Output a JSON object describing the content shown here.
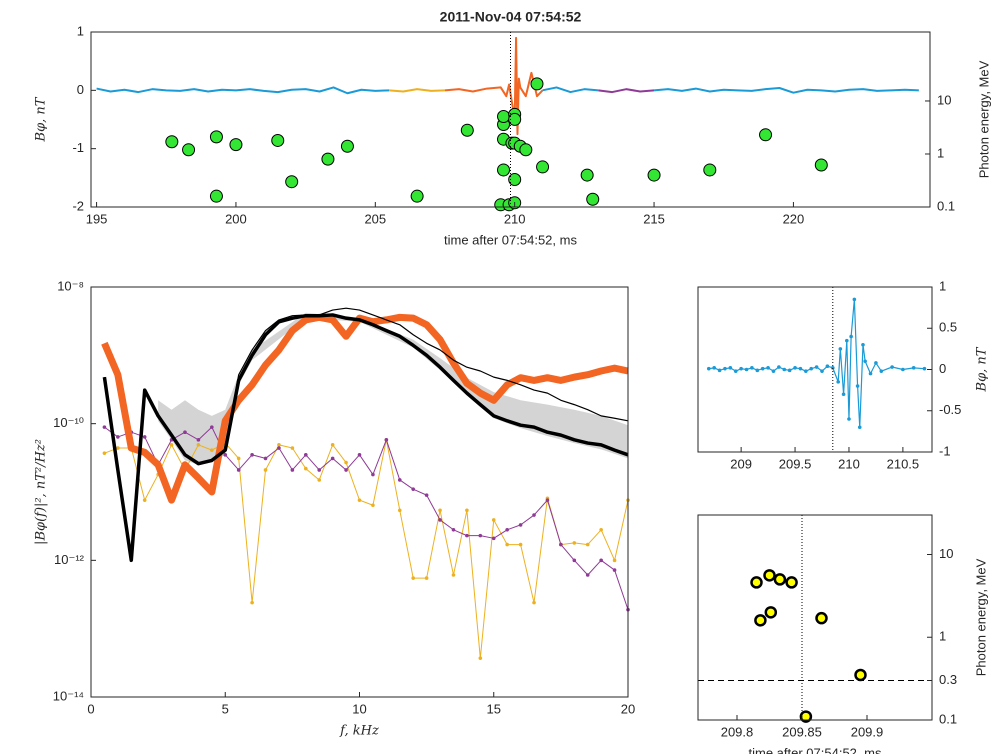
{
  "chart_data": [
    {
      "type": "line",
      "title": "2011-Nov-04 07:54:52",
      "xlabel": "time after 07:54:52, ms",
      "ylabel": "Bφ, nT",
      "y2label": "Photon energy, MeV",
      "xlim": [
        194.8,
        224.9
      ],
      "xticks": [
        195,
        200,
        205,
        210,
        215,
        220
      ],
      "ylim": [
        -2,
        1
      ],
      "yticks": [
        -2,
        -1,
        0,
        1
      ],
      "y2lim": [
        0.1,
        200
      ],
      "y2ticks": [
        0.1,
        1,
        10
      ],
      "y2log": true,
      "vline": 209.85,
      "series": [
        {
          "color": "#1a9ad6",
          "style": "line",
          "width": 2,
          "x": [
            195,
            195.5,
            196,
            196.5,
            197,
            197.5,
            198,
            198.5,
            199,
            199.5,
            200,
            200.5,
            201,
            201.5,
            202,
            202.5,
            203,
            203.5,
            204,
            204.5,
            205,
            205.5
          ],
          "values": [
            0.03,
            -0.02,
            0.01,
            -0.03,
            0.02,
            0,
            -0.01,
            0.02,
            -0.02,
            0.01,
            0,
            0.02,
            -0.01,
            -0.03,
            0.01,
            0.02,
            -0.02,
            0.05,
            -0.05,
            0.01,
            -0.01,
            0
          ]
        },
        {
          "color": "#edb120",
          "style": "line",
          "width": 2,
          "x": [
            205.5,
            206,
            206.5,
            207,
            207.5
          ],
          "values": [
            0,
            -0.02,
            0.02,
            -0.01,
            0
          ]
        },
        {
          "color": "#f26522",
          "style": "line",
          "width": 2,
          "x": [
            207.5,
            208,
            208.5,
            209,
            209.5,
            209.7,
            209.8,
            209.9,
            210,
            210.05,
            210.1,
            210.15,
            210.2,
            210.4,
            210.6,
            210.8,
            211
          ],
          "values": [
            0,
            0.02,
            -0.02,
            0.03,
            0.05,
            -0.1,
            0.1,
            -0.2,
            -0.5,
            0.9,
            -0.75,
            0.2,
            0.05,
            -0.1,
            0.3,
            -0.1,
            0
          ]
        },
        {
          "color": "#1a9ad6",
          "style": "line",
          "width": 2,
          "x": [
            211,
            211.5,
            212,
            212.5,
            213
          ],
          "values": [
            0,
            0.05,
            -0.03,
            0.02,
            0
          ]
        },
        {
          "color": "#8e3a96",
          "style": "line",
          "width": 2,
          "x": [
            213,
            213.5,
            214,
            214.5,
            215
          ],
          "values": [
            0,
            -0.03,
            0.02,
            -0.02,
            0
          ]
        },
        {
          "color": "#1a9ad6",
          "style": "line",
          "width": 2,
          "x": [
            215,
            215.5,
            216,
            216.5,
            217,
            217.5,
            218,
            218.5,
            219,
            219.5,
            220,
            220.5,
            221,
            221.5,
            222,
            222.5,
            223,
            223.5,
            224,
            224.5
          ],
          "values": [
            0,
            0.02,
            -0.01,
            0.03,
            -0.02,
            0.01,
            0,
            -0.01,
            0.02,
            0.04,
            -0.04,
            0.01,
            0,
            -0.02,
            0.01,
            0.02,
            -0.01,
            0,
            0.01,
            0
          ]
        },
        {
          "color": "#33e633",
          "style": "markers",
          "axis": "y2",
          "x": [
            197.7,
            198.3,
            199.3,
            199.3,
            200,
            201.5,
            202,
            203.3,
            204,
            206.5,
            208.3,
            209.6,
            209.6,
            209.6,
            209.9,
            210,
            210,
            210,
            210.2,
            210.4,
            209.6,
            209.5,
            209.8,
            210,
            210,
            210.8,
            211,
            212.6,
            212.8,
            215,
            217,
            219,
            221
          ],
          "values": [
            1.7,
            1.2,
            2.1,
            0.16,
            1.5,
            1.8,
            0.3,
            0.8,
            1.4,
            0.16,
            2.8,
            3.6,
            5.1,
            1.9,
            1.6,
            5.6,
            4.5,
            1.6,
            1.4,
            1.2,
            0.5,
            0.11,
            0.11,
            0.12,
            0.33,
            21,
            0.57,
            0.4,
            0.14,
            0.4,
            0.5,
            2.3,
            0.62
          ]
        }
      ]
    },
    {
      "type": "line",
      "xlabel": "f, kHz",
      "ylabel": "|Bφ(f)|², nT²/Hz²",
      "xlim": [
        0,
        20
      ],
      "xticks": [
        0,
        5,
        10,
        15,
        20
      ],
      "ylim": [
        1e-14,
        1e-08
      ],
      "ylog": true,
      "yticks": [
        {
          "value": 1e-08,
          "label": "10⁻⁸"
        },
        {
          "value": 1e-10,
          "label": "10⁻¹⁰"
        },
        {
          "value": 1e-12,
          "label": "10⁻¹²"
        },
        {
          "value": 1e-14,
          "label": "10⁻¹⁴"
        }
      ],
      "x": [
        0.5,
        1,
        1.5,
        2,
        2.5,
        3,
        3.5,
        4,
        4.5,
        5,
        5.5,
        6,
        6.5,
        7,
        7.5,
        8,
        8.5,
        9,
        9.5,
        10,
        10.5,
        11,
        11.5,
        12,
        12.5,
        13,
        13.5,
        14,
        14.5,
        15,
        15.5,
        16,
        16.5,
        17,
        17.5,
        18,
        18.5,
        19,
        19.5,
        20
      ],
      "band": {
        "color": "#d4d4d4",
        "x": [
          2.5,
          3,
          3.5,
          4,
          4.5,
          5,
          5.5,
          6,
          8,
          10,
          12,
          13,
          14,
          15,
          16,
          17,
          18,
          19,
          20
        ],
        "upper": [
          2.2e-10,
          1.6e-10,
          2.2e-10,
          1.6e-10,
          1.3e-10,
          1.6e-10,
          5.2e-10,
          1.2e-09,
          4.2e-09,
          3.5e-09,
          1.7e-09,
          9.1e-10,
          4.7e-10,
          2.9e-10,
          2.2e-10,
          1.9e-10,
          1.6e-10,
          1.3e-10,
          9.5e-11
        ],
        "lower": [
          1.1e-10,
          5.8e-11,
          2.9e-11,
          2.5e-11,
          2.7e-11,
          3.5e-11,
          3.7e-10,
          8.5e-10,
          3.5e-09,
          3.1e-09,
          1.3e-09,
          6.1e-10,
          2.6e-10,
          1.2e-10,
          8.6e-11,
          6.6e-11,
          5.2e-11,
          4.2e-11,
          3.1e-11
        ]
      },
      "series": [
        {
          "color": "#edb120",
          "style": "line-markers",
          "width": 1,
          "values": [
            3.7e-11,
            4.4e-11,
            4.4e-11,
            7.6e-12,
            1.8e-11,
            4.9e-11,
            2.1e-11,
            4.9e-11,
            4.1e-11,
            5.2e-11,
            3.1e-11,
            2.4e-13,
            2.1e-11,
            4.9e-11,
            4.4e-11,
            2.2e-11,
            1.5e-11,
            4.9e-11,
            2.7e-11,
            7.6e-12,
            6.4e-12,
            5.8e-11,
            5.4e-12,
            5.5e-13,
            5.5e-13,
            5.4e-12,
            6.1e-13,
            5.4e-12,
            3.7e-14,
            3.9e-12,
            1.7e-12,
            1.7e-12,
            2.4e-13,
            8.1e-12,
            1.7e-12,
            1.8e-12,
            1.7e-12,
            2.8e-12,
            1e-12,
            7.6e-12
          ]
        },
        {
          "color": "#8e3a96",
          "style": "line-markers",
          "width": 1,
          "values": [
            8.9e-11,
            6.4e-11,
            7.5e-11,
            6.4e-11,
            2.5e-11,
            5.8e-11,
            7.5e-11,
            5.8e-11,
            8.9e-11,
            3.5e-11,
            2.1e-11,
            3.5e-11,
            3.1e-11,
            4.4e-11,
            2.1e-11,
            3.5e-11,
            2.1e-11,
            3.1e-11,
            2.1e-11,
            3.5e-11,
            1.8e-11,
            5.8e-11,
            1.5e-11,
            1.1e-11,
            9e-12,
            3.9e-12,
            2.8e-12,
            2.3e-12,
            2.3e-12,
            2.1e-12,
            2.8e-12,
            3.3e-12,
            4.6e-12,
            7.6e-12,
            1.7e-12,
            1e-12,
            6.1e-13,
            1e-12,
            7.2e-13,
            1.9e-13
          ]
        },
        {
          "color": "#f26522",
          "style": "line",
          "width": 7,
          "values": [
            1.5e-09,
            5.2e-10,
            4.4e-11,
            3.8e-11,
            2.5e-11,
            7.6e-12,
            2.5e-11,
            1.6e-11,
            1e-11,
            1.1e-10,
            2.2e-10,
            3.7e-10,
            7.2e-10,
            1.2e-09,
            2.3e-09,
            3.3e-09,
            3.6e-09,
            3.3e-09,
            1.9e-09,
            3.5e-09,
            3.1e-09,
            3.3e-09,
            3.6e-09,
            3.5e-09,
            2.8e-09,
            1.7e-09,
            7.7e-10,
            3.9e-10,
            2.8e-10,
            2.2e-10,
            3.7e-10,
            4.7e-10,
            4.3e-10,
            4.7e-10,
            4.3e-10,
            4.8e-10,
            5.2e-10,
            5.9e-10,
            6.5e-10,
            5.9e-10
          ]
        },
        {
          "color": "#000000",
          "style": "line",
          "width": 1.2,
          "values": [
            4.8e-10,
            2.1e-11,
            1e-12,
            3.1e-10,
            1.3e-10,
            6.8e-11,
            3.5e-11,
            2.6e-11,
            2.9e-11,
            4.1e-11,
            5.2e-10,
            1.2e-09,
            2.3e-09,
            3.3e-09,
            3.8e-09,
            3.9e-09,
            3.9e-09,
            4.6e-09,
            4.9e-09,
            4.6e-09,
            3.9e-09,
            3.3e-09,
            2.8e-09,
            2e-09,
            1.5e-09,
            1.2e-09,
            8.5e-10,
            6.7e-10,
            5.9e-10,
            4.8e-10,
            4.3e-10,
            3.7e-10,
            3.1e-10,
            2.8e-10,
            2.2e-10,
            1.9e-10,
            1.6e-10,
            1.3e-10,
            1.2e-10,
            1.1e-10
          ]
        },
        {
          "color": "#000000",
          "style": "line",
          "width": 3.5,
          "values": [
            4.8e-10,
            2.1e-11,
            1e-12,
            3.1e-10,
            1.3e-10,
            6.8e-11,
            3.5e-11,
            2.6e-11,
            2.9e-11,
            4.1e-11,
            4.3e-10,
            1e-09,
            2e-09,
            3.1e-09,
            3.5e-09,
            3.8e-09,
            3.8e-09,
            3.9e-09,
            3.5e-09,
            3.3e-09,
            2.8e-09,
            2.3e-09,
            1.9e-09,
            1.4e-09,
            1e-09,
            6.7e-10,
            4.3e-10,
            2.8e-10,
            1.9e-10,
            1.3e-10,
            1.1e-10,
            9.5e-11,
            8.9e-11,
            7.5e-11,
            6.8e-11,
            5.8e-11,
            5.2e-11,
            4.9e-11,
            4.1e-11,
            3.5e-11
          ]
        }
      ]
    },
    {
      "type": "line",
      "ylabel": "Bφ, nT",
      "yaxis_side": "right",
      "xlim": [
        208.6,
        210.77
      ],
      "xticks": [
        209,
        209.5,
        210,
        210.5
      ],
      "ylim": [
        -1,
        1
      ],
      "yticks": [
        -1,
        -0.5,
        0,
        0.5,
        1
      ],
      "vline": 209.85,
      "series": [
        {
          "color": "#1a9ad6",
          "style": "line-markers",
          "width": 1.2,
          "x": [
            208.7,
            208.75,
            208.8,
            208.85,
            208.9,
            208.95,
            209,
            209.05,
            209.1,
            209.15,
            209.2,
            209.25,
            209.3,
            209.35,
            209.4,
            209.45,
            209.5,
            209.55,
            209.6,
            209.65,
            209.7,
            209.75,
            209.8,
            209.85,
            209.9,
            209.92,
            209.95,
            209.98,
            210,
            210.02,
            210.05,
            210.08,
            210.1,
            210.13,
            210.15,
            210.2,
            210.25,
            210.3,
            210.4,
            210.5,
            210.6,
            210.7
          ],
          "values": [
            0.01,
            0.02,
            -0.01,
            0.01,
            0.02,
            -0.02,
            0.01,
            0,
            0.02,
            -0.01,
            0.01,
            0.02,
            -0.02,
            0.03,
            0,
            -0.01,
            0.02,
            0.01,
            -0.02,
            0.01,
            0.03,
            -0.02,
            0.04,
            0.02,
            -0.15,
            0.25,
            -0.3,
            0.35,
            -0.6,
            0.4,
            0.85,
            -0.2,
            -0.7,
            0.3,
            0.1,
            -0.05,
            0.08,
            -0.02,
            0.03,
            0,
            0.02,
            0.01
          ]
        }
      ]
    },
    {
      "type": "scatter",
      "xlabel": "time after 07:54:52, ms",
      "ylabel": "Photon energy, MeV",
      "yaxis_side": "right",
      "xlim": [
        209.77,
        209.95
      ],
      "xticks": [
        209.8,
        209.85,
        209.9
      ],
      "ylim": [
        0.1,
        30
      ],
      "ylog": true,
      "yticks": [
        0.1,
        0.3,
        1,
        10
      ],
      "vline": 209.85,
      "hline": 0.3,
      "series": [
        {
          "color": "#ffff00",
          "style": "markers",
          "x": [
            209.815,
            209.825,
            209.833,
            209.842,
            209.818,
            209.826,
            209.865,
            209.853,
            209.895
          ],
          "values": [
            4.6,
            5.6,
            5,
            4.6,
            1.6,
            2,
            1.7,
            0.11,
            0.35
          ]
        }
      ]
    }
  ]
}
